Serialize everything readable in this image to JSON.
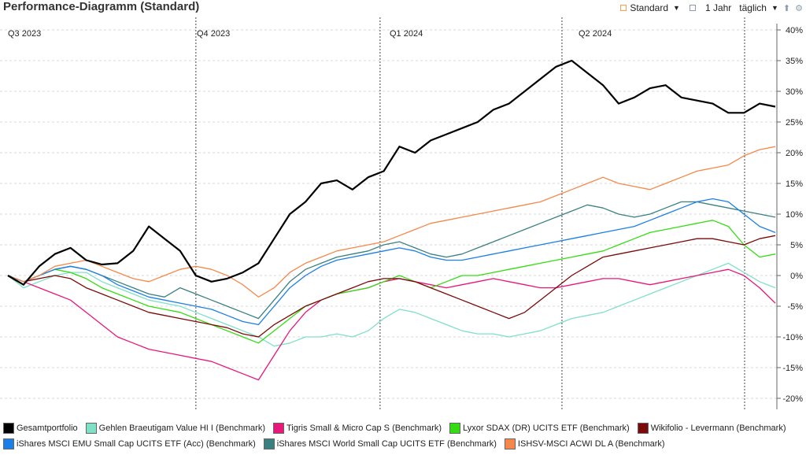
{
  "header": {
    "title": "Performance-Diagramm (Standard)",
    "view_label": "Standard",
    "period_label": "1 Jahr",
    "interval_label": "täglich",
    "accent": "#f0a050",
    "icon_up": "upload-icon",
    "icon_gear": "gear-icon"
  },
  "chart_data": {
    "type": "line",
    "title": "Performance-Diagramm (Standard)",
    "y_unit": "%",
    "ylim": [
      -20,
      40
    ],
    "y_ticks": [
      40,
      35,
      30,
      25,
      20,
      15,
      10,
      5,
      0,
      -5,
      -10,
      -15,
      -20
    ],
    "y_tick_labels": [
      "40%",
      "35%",
      "30%",
      "25%",
      "20%",
      "15%",
      "10%",
      "5%",
      "0%",
      "-5%",
      "-10%",
      "-15%",
      "-20%"
    ],
    "quarter_labels": [
      "Q3 2023",
      "Q4 2023",
      "Q1 2024",
      "Q2 2024"
    ],
    "grid": true,
    "x_points": 50,
    "series": [
      {
        "name": "Gesamtportfolio",
        "color": "#000000",
        "width": 2.2,
        "values": [
          0,
          -1.5,
          1.5,
          3.5,
          4.5,
          2.5,
          1.8,
          2,
          4,
          8,
          6,
          4,
          0,
          -1,
          -0.5,
          0.5,
          2,
          6,
          10,
          12,
          15,
          15.5,
          14,
          16,
          17,
          21,
          20,
          22,
          23,
          24,
          25,
          27,
          28,
          30,
          32,
          34,
          35,
          33,
          31,
          28,
          29,
          30.5,
          31,
          29,
          28.5,
          28,
          26.5,
          26.5,
          28,
          27.5
        ]
      },
      {
        "name": "Gehlen Braeutigam Value HI I (Benchmark)",
        "color": "#7fe0c8",
        "width": 1.3,
        "values": [
          0,
          -2,
          -1,
          0,
          0.5,
          0.5,
          -1,
          -2,
          -3,
          -4,
          -4.5,
          -5,
          -6,
          -7,
          -8,
          -9,
          -10,
          -11.5,
          -11,
          -10,
          -10,
          -9.5,
          -10,
          -9,
          -7,
          -5.5,
          -6,
          -7,
          -8,
          -9,
          -9.5,
          -9.5,
          -10,
          -9.5,
          -9,
          -8,
          -7,
          -6.5,
          -6,
          -5,
          -4,
          -3,
          -2,
          -1,
          0,
          1,
          2,
          0.5,
          -1,
          -2
        ]
      },
      {
        "name": "Tigris Small & Micro Cap S (Benchmark)",
        "color": "#e8177a",
        "width": 1.3,
        "values": [
          0,
          -1,
          -2,
          -3,
          -4,
          -6,
          -8,
          -10,
          -11,
          -12,
          -12.5,
          -13,
          -13.5,
          -14,
          -15,
          -16,
          -17,
          -13,
          -9,
          -6,
          -4,
          -3,
          -2.5,
          -2,
          -1,
          -0.5,
          -1,
          -1.5,
          -2,
          -1.5,
          -1,
          -0.5,
          -1,
          -1.5,
          -2,
          -2,
          -1.5,
          -1,
          -0.5,
          -0.5,
          -1,
          -1.5,
          -1,
          -0.5,
          0,
          0.5,
          1,
          0,
          -2,
          -4.5
        ]
      },
      {
        "name": "Lyxor SDAX (DR) UCITS ETF (Benchmark)",
        "color": "#33dd11",
        "width": 1.3,
        "values": [
          0,
          -1,
          0,
          1,
          0.5,
          -0.5,
          -2,
          -3,
          -4,
          -5,
          -5.5,
          -6,
          -7,
          -8,
          -9,
          -10,
          -11,
          -9,
          -7,
          -5,
          -4,
          -3,
          -2.5,
          -2,
          -1,
          0,
          -1,
          -2,
          -1,
          0,
          0,
          0.5,
          1,
          1.5,
          2,
          2.5,
          3,
          3.5,
          4,
          5,
          6,
          7,
          7.5,
          8,
          8.5,
          9,
          8,
          5,
          3,
          3.5
        ]
      },
      {
        "name": "Wikifolio - Levermann (Benchmark)",
        "color": "#7a0a0a",
        "width": 1.3,
        "values": [
          0,
          -1,
          -0.5,
          0,
          -0.5,
          -2,
          -3,
          -4,
          -5,
          -6,
          -6.5,
          -7,
          -7.5,
          -8,
          -8.5,
          -9.5,
          -10,
          -8,
          -6.5,
          -5,
          -4,
          -3,
          -2,
          -1,
          -0.5,
          -0.5,
          -1,
          -2,
          -3,
          -4,
          -5,
          -6,
          -7,
          -6,
          -4,
          -2,
          0,
          1.5,
          3,
          3.5,
          4,
          4.5,
          5,
          5.5,
          6,
          6,
          5.5,
          5,
          6,
          6.5
        ]
      },
      {
        "name": "iShares MSCI EMU Small Cap UCITS ETF (Acc) (Benchmark)",
        "color": "#1a7fe8",
        "width": 1.3,
        "values": [
          0,
          -1,
          0,
          1,
          1.5,
          1,
          0,
          -1.5,
          -2.5,
          -3.5,
          -4,
          -4.5,
          -5,
          -5.5,
          -6.5,
          -7.5,
          -8,
          -5,
          -2,
          0,
          1.5,
          2.5,
          3,
          3.5,
          4,
          4.5,
          4,
          3,
          2.5,
          2.5,
          3,
          3.5,
          4,
          4.5,
          5,
          5.5,
          6,
          6.5,
          7,
          7.5,
          8,
          9,
          10,
          11,
          12,
          12.5,
          12,
          10,
          8,
          7
        ]
      },
      {
        "name": "iShares MSCI World Small Cap UCITS ETF (Benchmark)",
        "color": "#3a8080",
        "width": 1.3,
        "values": [
          0,
          -1,
          0,
          1,
          1.5,
          1,
          0,
          -1,
          -2,
          -3,
          -3.5,
          -2,
          -3,
          -4,
          -5,
          -6,
          -7,
          -4,
          -1,
          1,
          2,
          3,
          3.5,
          4,
          5,
          5.5,
          4.5,
          3.5,
          3,
          3.5,
          4.5,
          5.5,
          6.5,
          7.5,
          8.5,
          9.5,
          10.5,
          11.5,
          11,
          10,
          9.5,
          10,
          11,
          12,
          12,
          11.5,
          11,
          10.5,
          10,
          9.5
        ]
      },
      {
        "name": "ISHSV-MSCI ACWI DL A (Benchmark)",
        "color": "#f5884a",
        "width": 1.3,
        "values": [
          0,
          -1,
          0,
          1.5,
          2,
          2.5,
          1.5,
          0.5,
          -0.5,
          -1,
          0,
          1,
          1.5,
          1,
          0,
          -1.5,
          -3.5,
          -2,
          0.5,
          2,
          3,
          4,
          4.5,
          5,
          5.5,
          6.5,
          7.5,
          8.5,
          9,
          9.5,
          10,
          10.5,
          11,
          11.5,
          12,
          13,
          14,
          15,
          16,
          15,
          14.5,
          14,
          15,
          16,
          17,
          17.5,
          18,
          19.5,
          20.5,
          21
        ]
      }
    ]
  },
  "legend_rows": [
    [
      0,
      1,
      2,
      3,
      4
    ],
    [
      5,
      6,
      7
    ]
  ]
}
